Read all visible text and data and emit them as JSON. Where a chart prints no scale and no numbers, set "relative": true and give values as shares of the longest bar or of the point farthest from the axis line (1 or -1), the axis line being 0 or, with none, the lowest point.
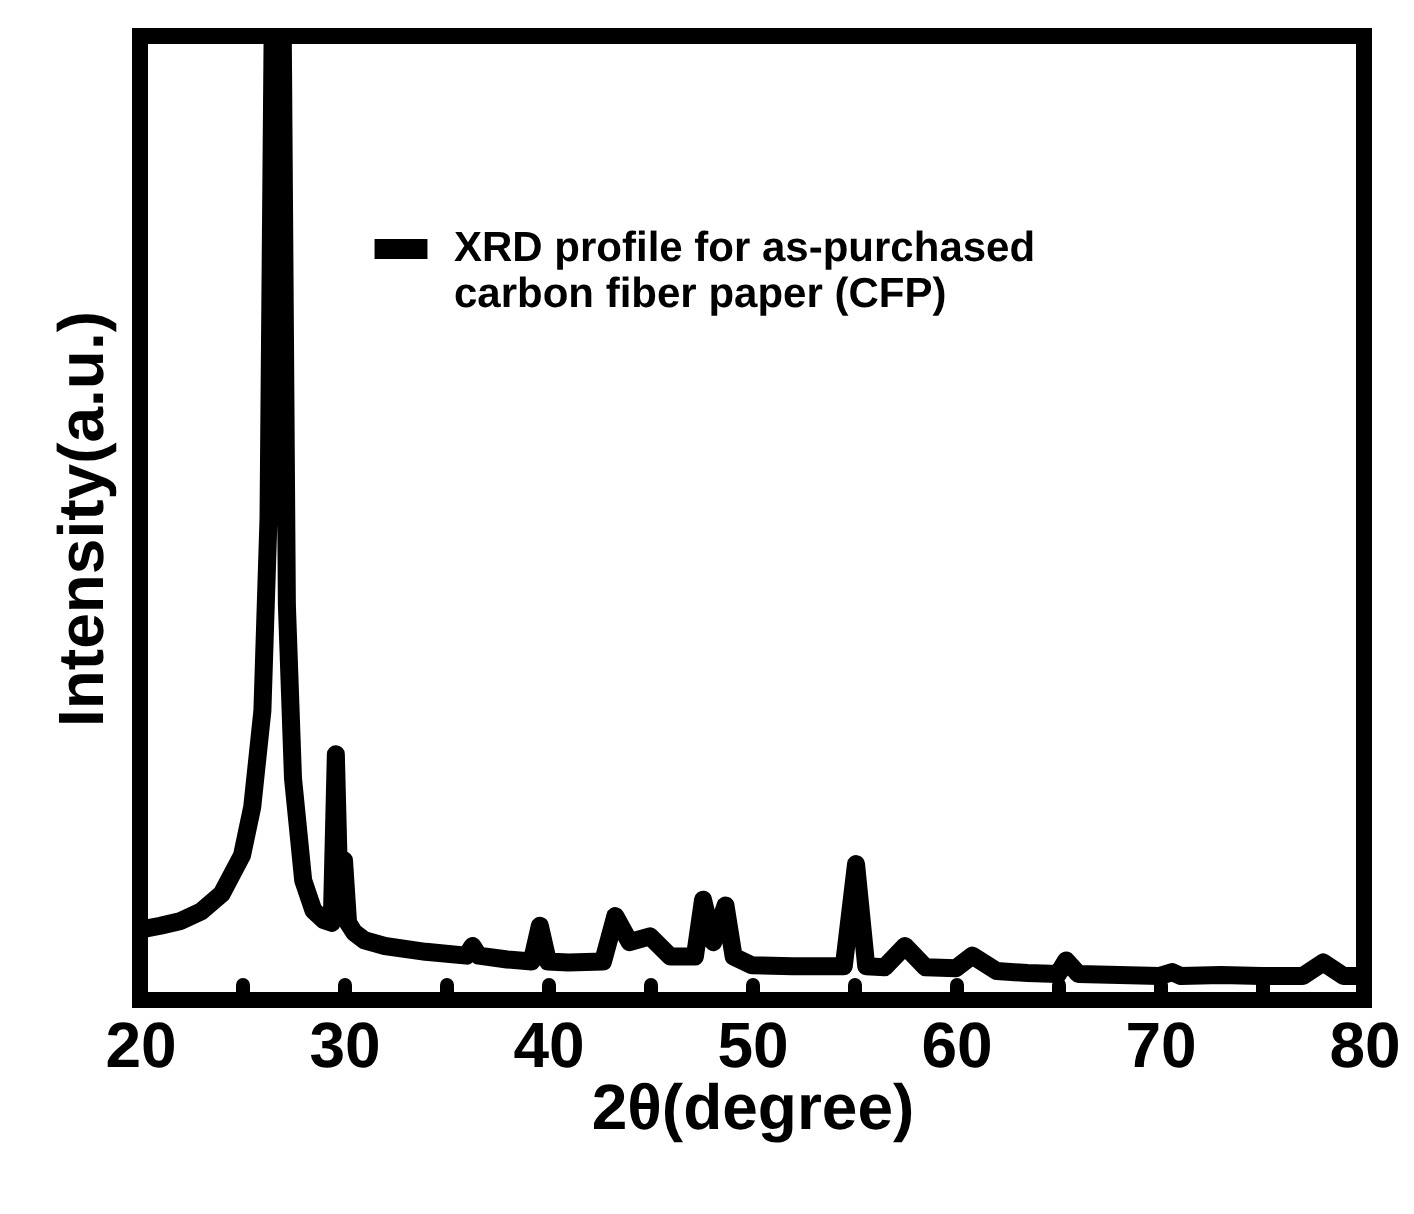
{
  "chart_data": {
    "type": "line",
    "xlabel": "2θ(degree)",
    "ylabel": "Intensity(a.u.)",
    "relative": true,
    "grid": false,
    "legend": "top right",
    "line_style": "solid",
    "xlim": [
      20,
      80
    ],
    "xticks": [
      20,
      {
        "value": 25,
        "label": null
      },
      30,
      {
        "value": 35,
        "label": null
      },
      40,
      {
        "value": 45,
        "label": null
      },
      50,
      {
        "value": 55,
        "label": null
      },
      60,
      {
        "value": 65,
        "label": null
      },
      70,
      {
        "value": 75,
        "label": null
      },
      80
    ],
    "x": [
      20,
      21,
      22,
      23,
      24,
      25,
      25.5,
      26,
      26.3,
      26.5,
      27,
      27.2,
      27.5,
      28,
      28.5,
      29,
      29.4,
      29.6,
      29.8,
      30,
      30.2,
      30.5,
      31,
      32,
      34,
      36,
      36.3,
      36.6,
      38,
      39.2,
      39.6,
      40,
      41,
      42.7,
      43.3,
      44,
      45,
      46,
      47.2,
      47.6,
      48.1,
      48.7,
      49.1,
      50,
      52,
      54.5,
      55.1,
      55.6,
      56.5,
      57.5,
      58.5,
      60,
      60.8,
      62,
      63.5,
      65,
      65.4,
      66,
      68,
      70,
      70.6,
      71,
      73,
      75,
      77,
      78,
      79,
      80
    ],
    "series": [
      {
        "name": "XRD profile for as-purchased carbon fiber paper (CFP)",
        "color": "#000000",
        "values": [
          0.073,
          0.077,
          0.082,
          0.092,
          0.11,
          0.15,
          0.2,
          0.3,
          0.5,
          1,
          1,
          0.41,
          0.23,
          0.124,
          0.093,
          0.083,
          0.08,
          0.255,
          0.09,
          0.145,
          0.08,
          0.07,
          0.062,
          0.056,
          0.05,
          0.046,
          0.056,
          0.046,
          0.042,
          0.04,
          0.077,
          0.04,
          0.039,
          0.04,
          0.087,
          0.06,
          0.066,
          0.045,
          0.045,
          0.104,
          0.06,
          0.098,
          0.045,
          0.036,
          0.035,
          0.035,
          0.141,
          0.035,
          0.034,
          0.056,
          0.034,
          0.033,
          0.046,
          0.03,
          0.028,
          0.027,
          0.041,
          0.027,
          0.026,
          0.025,
          0.029,
          0.025,
          0.026,
          0.025,
          0.025,
          0.039,
          0.025,
          0.025
        ]
      }
    ]
  }
}
